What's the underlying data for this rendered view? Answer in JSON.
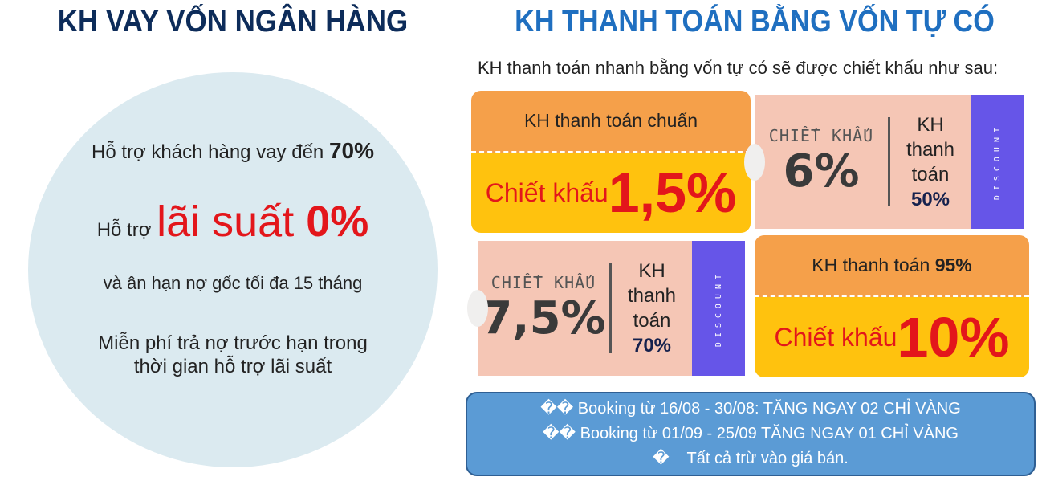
{
  "left": {
    "title": "KH VAY VỐN NGÂN HÀNG",
    "line1": "Hỗ trợ khách hàng vay đến ",
    "line1_bold": "70%",
    "line2_prefix": "Hỗ trợ ",
    "line2_red": "lãi suất ",
    "line2_bold": "0%",
    "line3": "và ân hạn nợ gốc tối đa 15 tháng",
    "line4": "Miễn phí trả nợ trước hạn trong",
    "line5": "thời gian hỗ trợ lãi suất"
  },
  "right": {
    "title": "KH THANH TOÁN BẰNG VỐN TỰ CÓ",
    "subtitle": "KH thanh toán nhanh bằng vốn tự có sẽ được chiết khấu như sau:",
    "ticket1": {
      "top": "KH thanh toán chuẩn",
      "label": "Chiết khấu ",
      "value": "1,5%"
    },
    "ticket2": {
      "label": "CHIẾT KHẤU",
      "value": "6%",
      "r1": "KH",
      "r2": "thanh",
      "r3": "toán",
      "r4": "50%",
      "strip": "DISCOUNT"
    },
    "ticket3": {
      "label": "CHIẾT KHẤU",
      "value": "7,5%",
      "r1": "KH",
      "r2": "thanh",
      "r3": "toán",
      "r4": "70%",
      "strip": "DISCOUNT"
    },
    "ticket4": {
      "top": "KH thanh toán ",
      "top_bold": "95%",
      "label": "Chiết khấu",
      "value": "10%"
    },
    "promo": [
      "�� Booking từ 16/08 - 30/08:  TĂNG NGAY 02 CHỈ VÀNG",
      "�� Booking từ 01/09 - 25/09  TĂNG NGAY 01 CHỈ VÀNG",
      "�    Tất cả trừ vào giá bán."
    ]
  },
  "colors": {
    "navy": "#0d2c5a",
    "blue": "#1f6fc0",
    "red": "#e3161b",
    "orange": "#f5a04a",
    "yellow": "#ffc20e",
    "pink": "#f5c6b5",
    "purple": "#6655e8",
    "promo": "#5b9bd5"
  }
}
